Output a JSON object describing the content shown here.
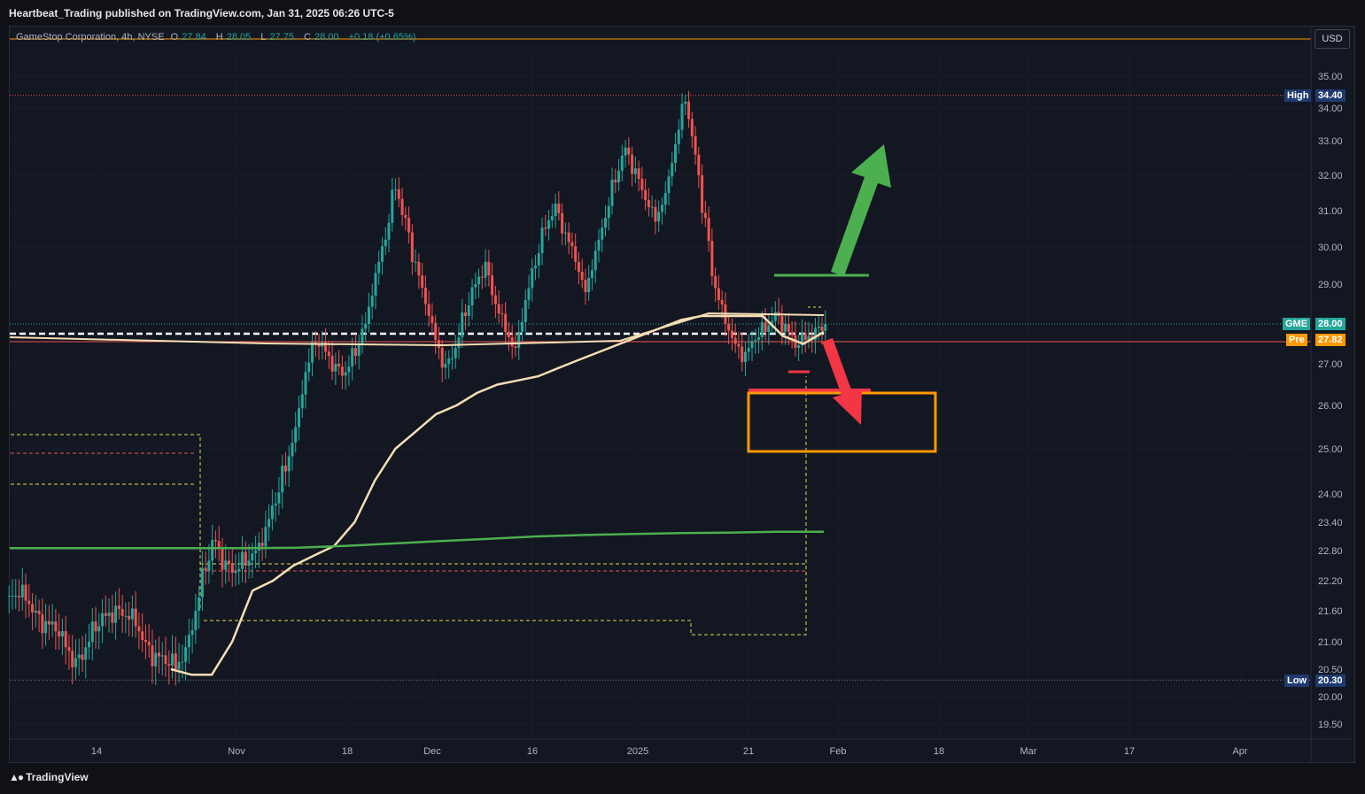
{
  "publisher": "Heartbeat_Trading published on TradingView.com, Jan 31, 2025 06:26 UTC-5",
  "legend": {
    "symbol": "GameStop Corporation, 4h, NYSE",
    "o_label": "O",
    "o": "27.84",
    "h_label": "H",
    "h": "28.05",
    "l_label": "L",
    "l": "27.75",
    "c_label": "C",
    "c": "28.00",
    "change": "+0.18 (+0.65%)"
  },
  "currency_button": "USD",
  "price_axis": {
    "ticks": [
      "35.00",
      "34.00",
      "33.00",
      "32.00",
      "31.00",
      "30.00",
      "29.00",
      "27.00",
      "26.00",
      "25.00",
      "24.00",
      "23.40",
      "22.80",
      "22.20",
      "21.60",
      "21.00",
      "20.50",
      "20.00",
      "19.50"
    ]
  },
  "tags": {
    "high_label": "High",
    "high_value": "34.40",
    "symbol_label": "GME",
    "symbol_value": "28.00",
    "pre_label": "Pre",
    "pre_value": "27.82",
    "low_label": "Low",
    "low_value": "20.30"
  },
  "time_axis": {
    "ticks": [
      "14",
      "Nov",
      "18",
      "Dec",
      "16",
      "2025",
      "21",
      "Feb",
      "18",
      "Mar",
      "17",
      "Apr"
    ]
  },
  "footer": "TradingView",
  "colors": {
    "up": "#26a69a",
    "down": "#ef5350",
    "background": "#131722",
    "ma_short": "#f5deb3",
    "ma_long": "#4caf50",
    "target_box": "#ff9800",
    "arrow_up": "#4caf50",
    "arrow_down": "#f23645",
    "high_tag": "#1e3a6e",
    "pre_tag": "#ff9800",
    "symbol_tag": "#26a69a"
  },
  "chart_data": {
    "type": "line",
    "symbol": "GME",
    "interval": "4h",
    "yrange": [
      19.3,
      35.3
    ],
    "high": 34.4,
    "low": 20.3,
    "last": 28.0,
    "premarket": 27.82,
    "series": [
      {
        "values": [
          21.9,
          21.8,
          21.6,
          21.4,
          21.2,
          20.9,
          20.7,
          20.9,
          21.2,
          21.5,
          21.7,
          21.5,
          21.3,
          21.0,
          20.8,
          20.6,
          20.5,
          20.9,
          21.6,
          22.4,
          23.0,
          22.6,
          22.4,
          22.5,
          22.8,
          23.3,
          23.8,
          24.5,
          25.5,
          26.8,
          27.5,
          27.3,
          27.0,
          26.8,
          27.2,
          28.0,
          29.3,
          30.2,
          31.6,
          30.8,
          29.6,
          28.5,
          27.6,
          27.0,
          27.4,
          28.2,
          29.0,
          29.6,
          28.5,
          27.8,
          27.4,
          28.6,
          29.5,
          30.5,
          31.2,
          30.4,
          29.6,
          28.8,
          29.9,
          30.8,
          31.8,
          32.8,
          32.2,
          31.3,
          30.7,
          31.5,
          32.9,
          34.2,
          32.6,
          30.8,
          28.9,
          28.0,
          27.5,
          27.3,
          27.6,
          27.8,
          28.3,
          28.0,
          27.4,
          27.6,
          27.9,
          28.0
        ]
      },
      {
        "values": [
          20.5,
          20.4,
          20.4,
          21.0,
          22.0,
          22.2,
          22.5,
          22.7,
          22.9,
          23.4,
          24.3,
          25.0,
          25.4,
          25.8,
          26.0,
          26.3,
          26.5,
          26.6,
          26.7,
          26.9,
          27.1,
          27.3,
          27.5,
          27.7,
          27.9,
          28.1,
          28.2,
          28.2,
          28.2,
          28.2,
          27.7,
          27.5,
          27.8
        ]
      },
      {
        "values": [
          22.85,
          22.85,
          22.85,
          22.85,
          22.85,
          22.85,
          22.86,
          22.9,
          22.95,
          23.0,
          23.05,
          23.1,
          23.13,
          23.15,
          23.17,
          23.18,
          23.2,
          23.2
        ]
      }
    ],
    "levels": [
      34.4,
      27.75,
      27.82,
      26.35,
      20.3
    ]
  }
}
